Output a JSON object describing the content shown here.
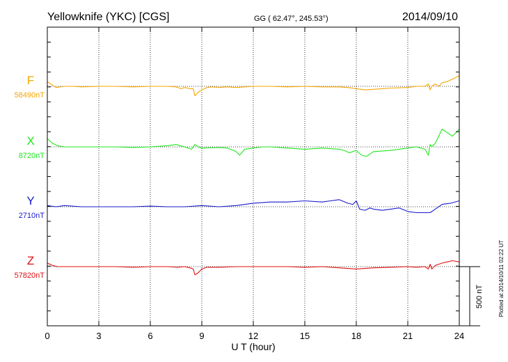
{
  "header": {
    "station": "Yellowknife (YKC)  [CGS]",
    "coords": "GG ( 62.47°, 245.53°)",
    "date": "2014/09/10"
  },
  "plotted_note": "Plotted at 2014/10/11 02:22 UT",
  "chart_data": {
    "type": "line",
    "xlabel": "U T (hour)",
    "xlim": [
      0,
      24
    ],
    "xticks": [
      0,
      3,
      6,
      9,
      12,
      15,
      18,
      21,
      24
    ],
    "nT_per_division": 100,
    "scale_bar_label": "500 nT",
    "series": [
      {
        "name": "F",
        "baseline_label": "58490nT",
        "color": "#f5a500",
        "x": [
          0,
          0.5,
          1,
          1.5,
          2,
          3,
          4,
          5,
          6,
          7,
          7.5,
          7.8,
          8,
          8.3,
          8.5,
          8.6,
          8.8,
          9,
          9.3,
          9.6,
          10,
          10.5,
          11,
          11.5,
          12,
          13,
          14,
          15,
          16,
          17,
          17.5,
          18,
          18.5,
          19,
          19.5,
          20,
          21,
          21.5,
          22,
          22.2,
          22.3,
          22.4,
          22.6,
          22.8,
          23,
          23.3,
          23.6,
          24
        ],
        "values": [
          8,
          -2,
          0,
          0,
          -1,
          0,
          0,
          -1,
          0,
          0,
          -1,
          -4,
          -2,
          -4,
          -4,
          -16,
          -10,
          -6,
          -2,
          -1,
          -2,
          -1,
          -2,
          -1,
          0,
          0,
          -1,
          0,
          -1,
          -1,
          -2,
          -4,
          -6,
          -5,
          -4,
          -3,
          -2,
          0,
          0,
          4,
          -6,
          0,
          4,
          0,
          6,
          8,
          12,
          18
        ]
      },
      {
        "name": "X",
        "baseline_label": "8720nT",
        "color": "#1ee61e",
        "x": [
          0,
          0.3,
          0.6,
          1,
          2,
          3,
          4,
          5,
          6,
          7,
          7.5,
          8,
          8.4,
          8.6,
          8.8,
          9,
          10,
          10.5,
          11,
          11.2,
          11.5,
          12,
          12.5,
          13,
          14,
          15,
          16,
          17,
          17.3,
          17.6,
          18,
          18.3,
          18.6,
          19,
          20,
          21,
          21.5,
          22,
          22.2,
          22.3,
          22.4,
          22.6,
          23,
          23.3,
          23.6,
          24
        ],
        "values": [
          14,
          6,
          2,
          0,
          0,
          0,
          0,
          -1,
          0,
          2,
          4,
          0,
          -4,
          4,
          0,
          -2,
          -1,
          -2,
          -8,
          -14,
          -4,
          -2,
          0,
          0,
          -2,
          -4,
          -2,
          -4,
          -6,
          -10,
          -6,
          -14,
          -16,
          -8,
          -6,
          -2,
          0,
          -4,
          -14,
          4,
          0,
          6,
          30,
          24,
          18,
          30
        ]
      },
      {
        "name": "Y",
        "baseline_label": "2710nT",
        "color": "#1a1acc",
        "x": [
          0,
          0.5,
          1,
          2,
          3,
          4,
          5,
          6,
          7,
          8,
          9,
          10,
          11,
          12,
          13,
          14,
          15,
          16,
          16.5,
          17,
          17.5,
          17.8,
          18,
          18.2,
          18.5,
          18.8,
          19,
          19.5,
          20,
          20.5,
          21,
          21.5,
          22,
          22.3,
          22.6,
          23,
          23.5,
          24
        ],
        "values": [
          2,
          0,
          2,
          0,
          0,
          0,
          0,
          1,
          0,
          0,
          2,
          0,
          2,
          6,
          8,
          8,
          10,
          8,
          10,
          12,
          6,
          4,
          10,
          -4,
          -6,
          -2,
          -4,
          -6,
          -4,
          -2,
          -8,
          -10,
          -10,
          -10,
          -4,
          4,
          6,
          10
        ]
      },
      {
        "name": "Z",
        "baseline_label": "57820nT",
        "color": "#e01010",
        "x": [
          0,
          0.3,
          0.6,
          1,
          2,
          3,
          4,
          5,
          6,
          7,
          7.6,
          8,
          8.3,
          8.5,
          8.6,
          8.8,
          9,
          9.3,
          10,
          11,
          12,
          13,
          14,
          15,
          16,
          17,
          17.5,
          18,
          18.5,
          19,
          20,
          21,
          21.5,
          22,
          22.2,
          22.3,
          22.4,
          22.6,
          23,
          23.3,
          23.6,
          24
        ],
        "values": [
          6,
          2,
          0,
          0,
          0,
          0,
          0,
          -1,
          0,
          0,
          -1,
          0,
          -2,
          -4,
          -14,
          -10,
          -4,
          -1,
          -1,
          0,
          0,
          0,
          0,
          -1,
          0,
          -2,
          -3,
          -4,
          -3,
          -2,
          -1,
          0,
          -1,
          0,
          -4,
          4,
          -4,
          2,
          6,
          8,
          10,
          8
        ]
      }
    ]
  }
}
